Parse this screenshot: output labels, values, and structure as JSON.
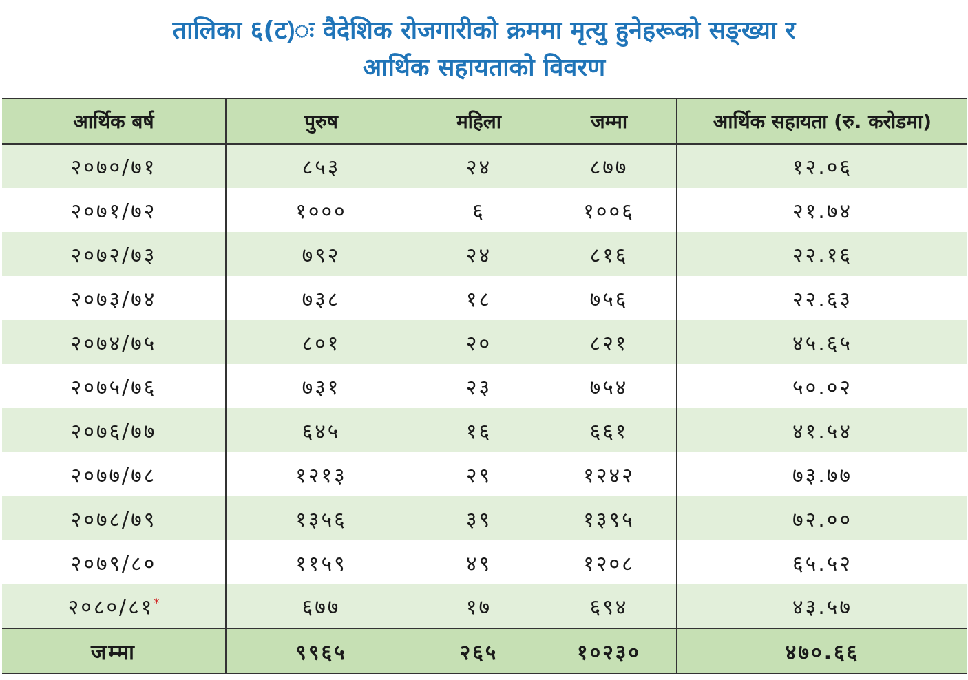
{
  "title": {
    "line1": "तालिका ६(ट)ः वैदेशिक रोजगारीको क्रममा मृत्यु हुनेहरूको सङ्ख्या र",
    "line2": "आर्थिक सहायताको विवरण"
  },
  "table": {
    "headers": [
      "आर्थिक बर्ष",
      "पुरुष",
      "महिला",
      "जम्मा",
      "आर्थिक सहायता (रु. करोडमा)"
    ],
    "rows": [
      {
        "year": "२०७०/७१",
        "male": "८५३",
        "female": "२४",
        "total": "८७७",
        "assistance": "१२.०६",
        "mark": ""
      },
      {
        "year": "२०७१/७२",
        "male": "१०००",
        "female": "६",
        "total": "१००६",
        "assistance": "२१.७४",
        "mark": ""
      },
      {
        "year": "२०७२/७३",
        "male": "७९२",
        "female": "२४",
        "total": "८१६",
        "assistance": "२२.१६",
        "mark": ""
      },
      {
        "year": "२०७३/७४",
        "male": "७३८",
        "female": "१८",
        "total": "७५६",
        "assistance": "२२.६३",
        "mark": ""
      },
      {
        "year": "२०७४/७५",
        "male": "८०१",
        "female": "२०",
        "total": "८२१",
        "assistance": "४५.६५",
        "mark": ""
      },
      {
        "year": "२०७५/७६",
        "male": "७३१",
        "female": "२३",
        "total": "७५४",
        "assistance": "५०.०२",
        "mark": ""
      },
      {
        "year": "२०७६/७७",
        "male": "६४५",
        "female": "१६",
        "total": "६६१",
        "assistance": "४१.५४",
        "mark": ""
      },
      {
        "year": "२०७७/७८",
        "male": "१२१३",
        "female": "२९",
        "total": "१२४२",
        "assistance": "७३.७७",
        "mark": ""
      },
      {
        "year": "२०७८/७९",
        "male": "१३५६",
        "female": "३९",
        "total": "१३९५",
        "assistance": "७२.००",
        "mark": ""
      },
      {
        "year": "२०७९/८०",
        "male": "११५९",
        "female": "४९",
        "total": "१२०८",
        "assistance": "६५.५२",
        "mark": ""
      },
      {
        "year": "२०८०/८१",
        "male": "६७७",
        "female": "१७",
        "total": "६९४",
        "assistance": "४३.५७",
        "mark": "*"
      }
    ],
    "footer": {
      "label": "जम्मा",
      "male": "९९६५",
      "female": "२६५",
      "total": "१०२३०",
      "assistance": "४७०.६६"
    }
  },
  "colors": {
    "title": "#1f74b8",
    "header_bg": "#c6e0b4",
    "stripe_bg": "#e2efda",
    "asterisk": "#d01c1c"
  }
}
